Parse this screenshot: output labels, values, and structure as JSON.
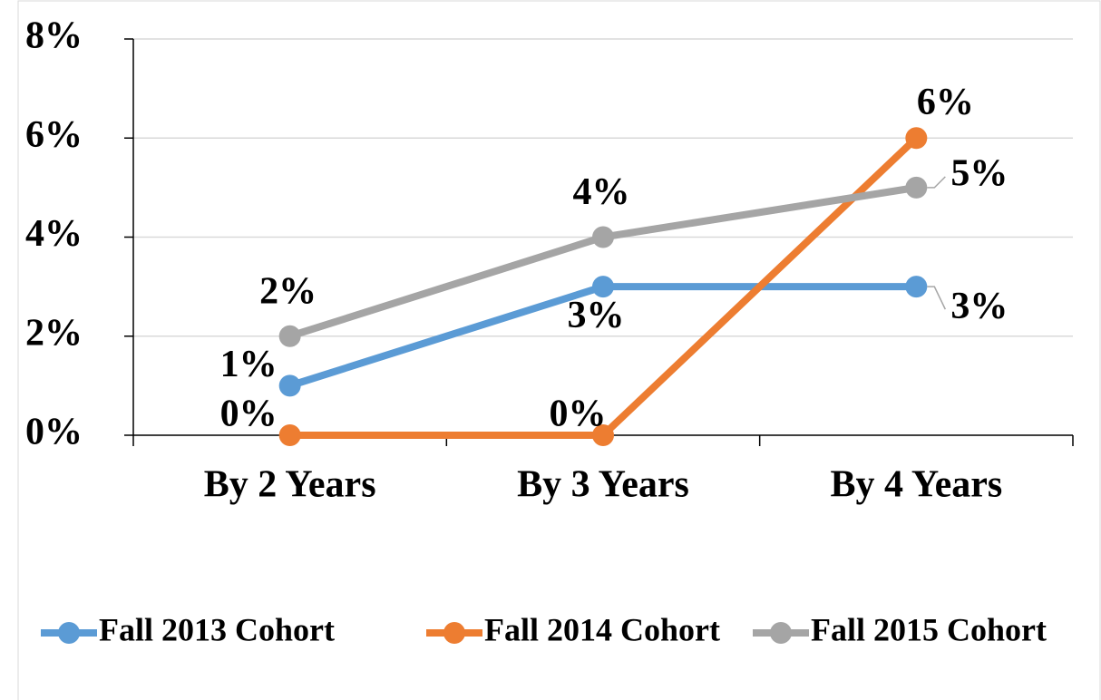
{
  "chart_data": {
    "type": "line",
    "categories": [
      "By 2 Years",
      "By 3 Years",
      "By 4 Years"
    ],
    "series": [
      {
        "name": "Fall 2013 Cohort",
        "color": "#5b9bd5",
        "values": [
          1,
          3,
          3
        ],
        "value_labels": [
          "1%",
          "3%",
          "3%"
        ]
      },
      {
        "name": "Fall 2014 Cohort",
        "color": "#ed7d31",
        "values": [
          0,
          0,
          6
        ],
        "value_labels": [
          "0%",
          "0%",
          "6%"
        ]
      },
      {
        "name": "Fall 2015 Cohort",
        "color": "#a5a5a5",
        "values": [
          2,
          4,
          5
        ],
        "value_labels": [
          "2%",
          "4%",
          "5%"
        ]
      }
    ],
    "ylim": [
      0,
      8
    ],
    "yticks": [
      {
        "value": 0,
        "label": "0%"
      },
      {
        "value": 2,
        "label": "2%"
      },
      {
        "value": 4,
        "label": "4%"
      },
      {
        "value": 6,
        "label": "6%"
      },
      {
        "value": 8,
        "label": "8%"
      }
    ],
    "grid": true,
    "legend": "bottom"
  }
}
